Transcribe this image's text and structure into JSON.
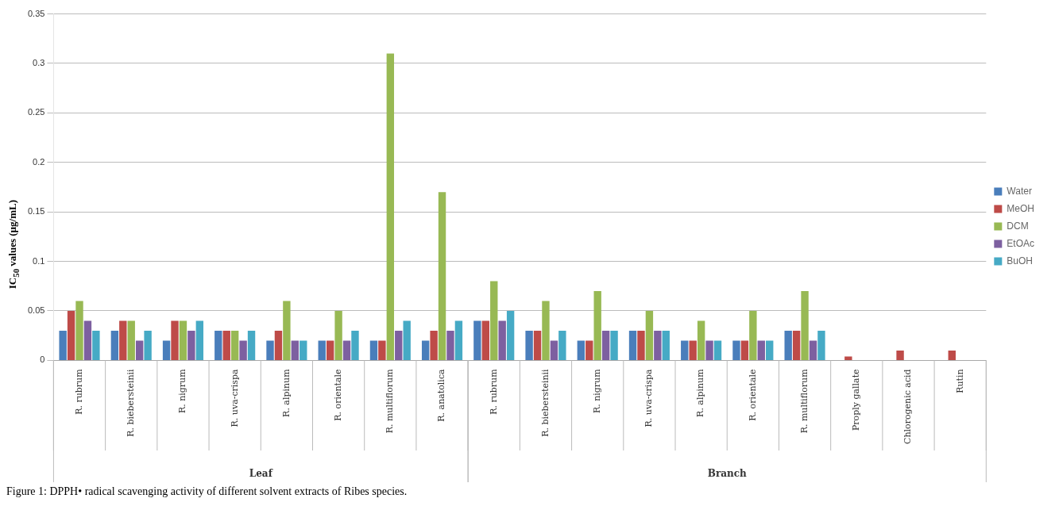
{
  "chart_data": {
    "type": "bar",
    "ylabel": "IC$_{50}$ values (µg/mL)",
    "categories": [
      "R. rubrum",
      "R. biebersteinii",
      "R. nigrum",
      "R. uva-crispa",
      "R. alpinum",
      "R. orientale",
      "R. multiflorum",
      "R. anatolica",
      "R. rubrum",
      "R. biebersteinii",
      "R. nigrum",
      "R. uva-crispa",
      "R. alpinum",
      "R. orientale",
      "R. multiflorum",
      "Proply gallate",
      "Chlorogenic acid",
      "Rutin"
    ],
    "series": [
      {
        "name": "Water",
        "color": "#4a7ebb",
        "values": [
          0.03,
          0.03,
          0.02,
          0.03,
          0.02,
          0.02,
          0.02,
          0.02,
          0.04,
          0.03,
          0.02,
          0.03,
          0.02,
          0.02,
          0.03,
          null,
          null,
          null
        ]
      },
      {
        "name": "MeOH",
        "color": "#be4b48",
        "values": [
          0.05,
          0.04,
          0.04,
          0.03,
          0.03,
          0.02,
          0.02,
          0.03,
          0.04,
          0.03,
          0.02,
          0.03,
          0.02,
          0.02,
          0.03,
          0.004,
          0.01,
          0.01
        ]
      },
      {
        "name": "DCM",
        "color": "#98b954",
        "values": [
          0.06,
          0.04,
          0.04,
          0.03,
          0.06,
          0.05,
          0.31,
          0.17,
          0.08,
          0.06,
          0.07,
          0.05,
          0.04,
          0.05,
          0.07,
          null,
          null,
          null
        ]
      },
      {
        "name": "EtOAc",
        "color": "#7d60a0",
        "values": [
          0.04,
          0.02,
          0.03,
          0.02,
          0.02,
          0.02,
          0.03,
          0.03,
          0.04,
          0.02,
          0.03,
          0.03,
          0.02,
          0.02,
          0.02,
          null,
          null,
          null
        ]
      },
      {
        "name": "BuOH",
        "color": "#46aac5",
        "values": [
          0.03,
          0.03,
          0.04,
          0.03,
          0.02,
          0.03,
          0.04,
          0.04,
          0.05,
          0.03,
          0.03,
          0.03,
          0.02,
          0.02,
          0.03,
          null,
          null,
          null
        ]
      }
    ],
    "ylim": [
      0,
      0.35
    ],
    "yticks": [
      0,
      0.05,
      0.1,
      0.15,
      0.2,
      0.25,
      0.3,
      0.35
    ],
    "grid": "y",
    "legend": "right",
    "annotations": [
      "Leaf",
      "Branch",
      "Figure 1: DPPH• radical scavenging activity of different solvent extracts of Ribes species."
    ]
  }
}
